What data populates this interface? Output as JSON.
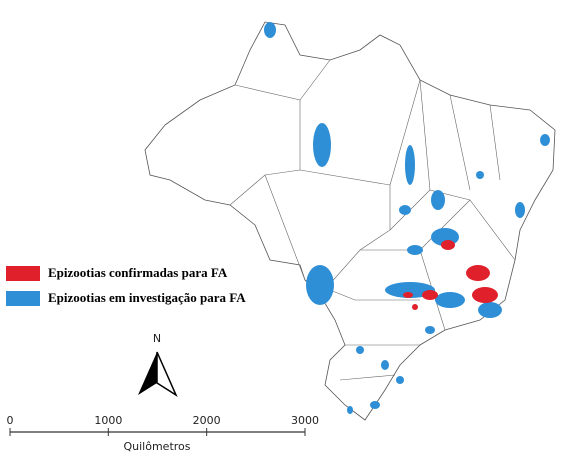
{
  "legend": {
    "items": [
      {
        "label": "Epizootias confirmadas para FA",
        "color": "#e0202a"
      },
      {
        "label": "Epizootias em investigação para FA",
        "color": "#2f8fd6"
      }
    ]
  },
  "north": "N",
  "scale_bar": {
    "ticks": [
      0,
      1000,
      2000,
      3000
    ],
    "unit": "Quilômetros"
  }
}
